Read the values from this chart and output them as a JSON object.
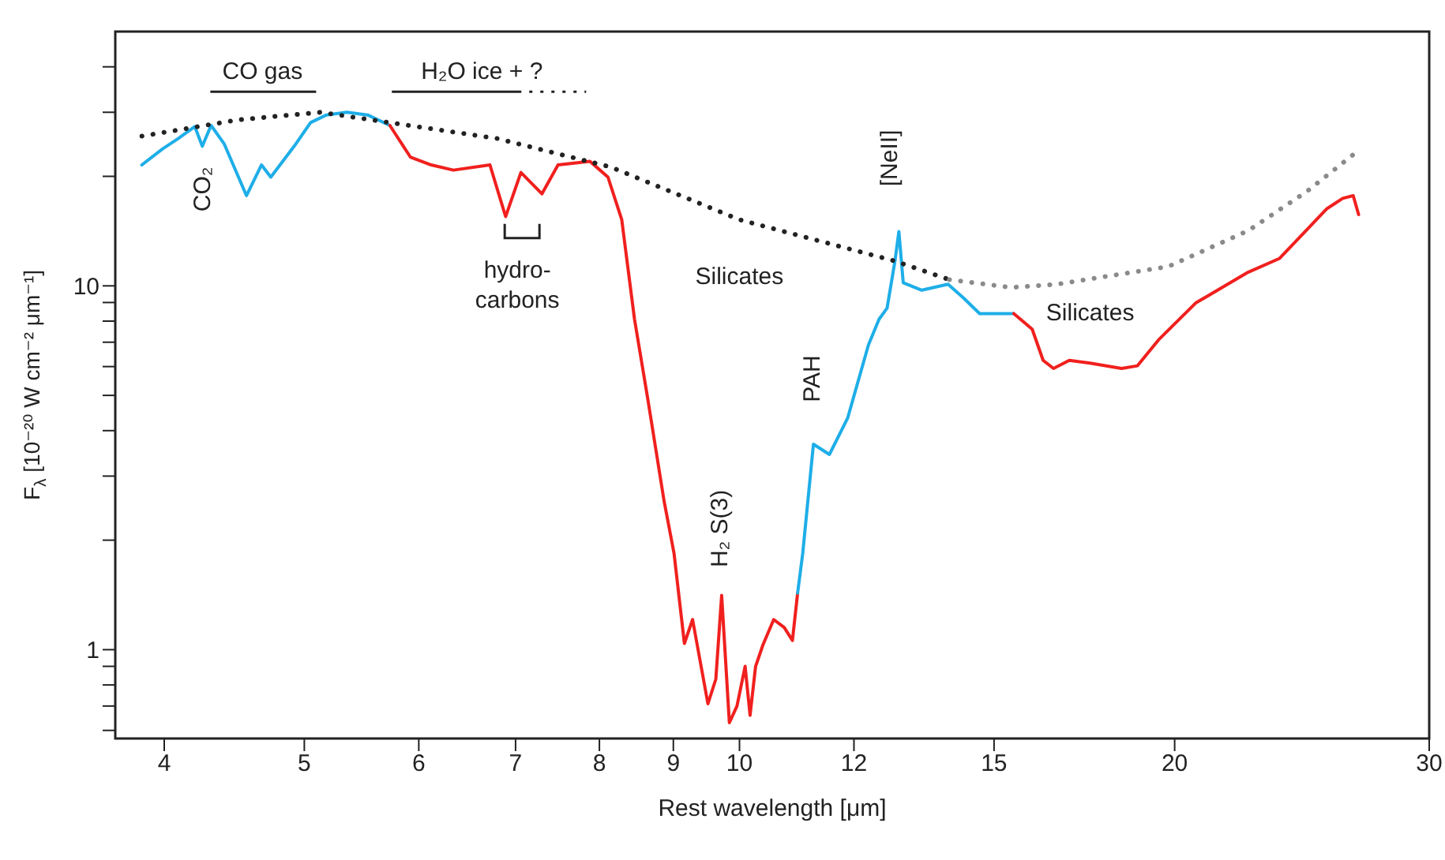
{
  "chart_data": {
    "type": "line",
    "xlabel": "Rest wavelength [μm]",
    "ylabel": "F$_{λ}$ [10⁻²⁰ W cm⁻² μm⁻¹]",
    "log": "xy",
    "xlim": [
      3.7,
      30
    ],
    "xticks": [
      4,
      5,
      6,
      7,
      8,
      9,
      10,
      12,
      15,
      20,
      30
    ],
    "ylim": [
      0.57,
      50
    ],
    "yticks": [
      {
        "value": 0.6,
        "label": null
      },
      {
        "value": 0.7,
        "label": null
      },
      {
        "value": 0.8,
        "label": null
      },
      {
        "value": 0.9,
        "label": null
      },
      1,
      {
        "value": 2,
        "label": null
      },
      {
        "value": 3,
        "label": null
      },
      {
        "value": 4,
        "label": null
      },
      {
        "value": 5,
        "label": null
      },
      {
        "value": 6,
        "label": null
      },
      {
        "value": 7,
        "label": null
      },
      {
        "value": 8,
        "label": null
      },
      {
        "value": 9,
        "label": null
      },
      10,
      {
        "value": 20,
        "label": null
      },
      {
        "value": 30,
        "label": null
      },
      {
        "value": 40,
        "label": null
      }
    ],
    "series": [
      {
        "color": "#1eaee8",
        "line_style": "solid",
        "x": [
          3.86,
          3.99,
          4.09,
          4.2,
          4.25,
          4.31,
          4.4,
          4.56,
          4.67,
          4.74,
          4.92,
          5.05,
          5.18,
          5.35,
          5.53,
          5.73
        ],
        "values": [
          21.5,
          23.8,
          25.4,
          27.4,
          24.2,
          27.6,
          24.6,
          17.7,
          21.5,
          19.9,
          24.2,
          28.1,
          29.5,
          30.0,
          29.5,
          27.6
        ]
      },
      {
        "color": "#f0201e",
        "line_style": "solid",
        "x": [
          5.73,
          5.92,
          6.12,
          6.34,
          6.72,
          6.89,
          7.06,
          7.3,
          7.49,
          7.88,
          8.11,
          8.29,
          8.46,
          8.64,
          8.87,
          9.01,
          9.16,
          9.28,
          9.51,
          9.63,
          9.72,
          9.84,
          9.96,
          10.09,
          10.17,
          10.26,
          10.38,
          10.56,
          10.74,
          10.88,
          10.97
        ],
        "values": [
          27.6,
          22.6,
          21.5,
          20.8,
          21.5,
          15.5,
          20.5,
          17.9,
          21.5,
          22.0,
          19.9,
          15.2,
          8.1,
          4.9,
          2.55,
          1.84,
          1.04,
          1.21,
          0.71,
          0.83,
          1.41,
          0.63,
          0.7,
          0.9,
          0.66,
          0.9,
          1.03,
          1.21,
          1.15,
          1.06,
          1.43
        ]
      },
      {
        "color": "#1eaee8",
        "line_style": "solid",
        "x": [
          10.97,
          11.06,
          11.25,
          11.54,
          11.88,
          12.28,
          12.49,
          12.65,
          12.81,
          12.89,
          12.98,
          13.37,
          13.94,
          14.29,
          14.66,
          15.28,
          15.48
        ],
        "values": [
          1.43,
          1.84,
          3.67,
          3.44,
          4.33,
          6.88,
          8.1,
          8.68,
          11.7,
          14.1,
          10.2,
          9.73,
          10.1,
          9.26,
          8.39,
          8.39,
          8.39
        ]
      },
      {
        "color": "#f0201e",
        "line_style": "solid",
        "x": [
          15.48,
          15.94,
          16.22,
          16.49,
          16.91,
          17.48,
          18.38,
          18.85,
          19.49,
          20.68,
          22.48,
          23.64,
          24.66,
          25.49,
          26.14,
          26.58,
          26.81
        ],
        "values": [
          8.39,
          7.6,
          6.24,
          5.93,
          6.24,
          6.13,
          5.93,
          6.03,
          7.1,
          8.97,
          10.9,
          11.9,
          14.2,
          16.3,
          17.4,
          17.7,
          15.7
        ]
      },
      {
        "color": "#222222",
        "line_style": "dotted",
        "x": [
          3.86,
          4.5,
          5.13,
          5.73,
          6.8,
          8.15,
          10.0,
          12.81,
          13.97
        ],
        "values": [
          25.8,
          28.6,
          30.0,
          28.1,
          25.4,
          21.2,
          15.2,
          11.7,
          10.4
        ]
      },
      {
        "color": "#8a8a8a",
        "line_style": "dotted",
        "x": [
          13.97,
          15.41,
          16.58,
          19.8,
          22.5,
          24.7,
          26.6
        ],
        "values": [
          10.4,
          9.9,
          10.1,
          11.3,
          14.2,
          18.2,
          23.0
        ]
      }
    ],
    "annotations": [
      "CO gas",
      "H₂O ice + ?",
      "CO₂",
      "hydro-\ncarbons",
      "Silicates",
      "PAH",
      "[NeII]",
      "H₂ S(3)",
      "Silicates"
    ]
  }
}
